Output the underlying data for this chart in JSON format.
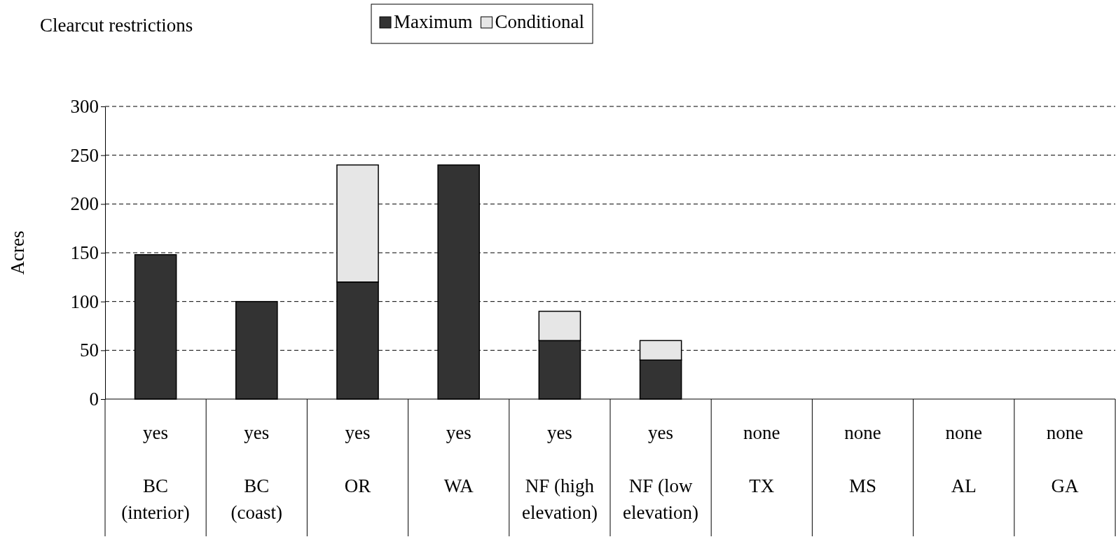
{
  "chart_data": {
    "type": "bar",
    "title": "Clearcut restrictions",
    "ylabel": "Acres",
    "stacked": true,
    "categories": [
      "BC (interior)",
      "BC (coast)",
      "OR",
      "WA",
      "NF (high elevation)",
      "NF (low elevation)",
      "TX",
      "MS",
      "AL",
      "GA"
    ],
    "series": [
      {
        "name": "Maximum",
        "color": "#333333",
        "values": [
          148,
          100,
          120,
          240,
          60,
          40,
          0,
          0,
          0,
          0
        ]
      },
      {
        "name": "Conditional",
        "color": "#e6e6e6",
        "values": [
          0,
          0,
          120,
          0,
          30,
          20,
          0,
          0,
          0,
          0
        ]
      }
    ],
    "ylim": [
      0,
      300
    ],
    "yticks": [
      0,
      50,
      100,
      150,
      200,
      250,
      300
    ],
    "grid": "y",
    "line_style": "dashed",
    "legend": "top",
    "annotations": [
      "yes",
      "yes",
      "yes",
      "yes",
      "yes",
      "yes",
      "none",
      "none",
      "none",
      "none"
    ]
  }
}
